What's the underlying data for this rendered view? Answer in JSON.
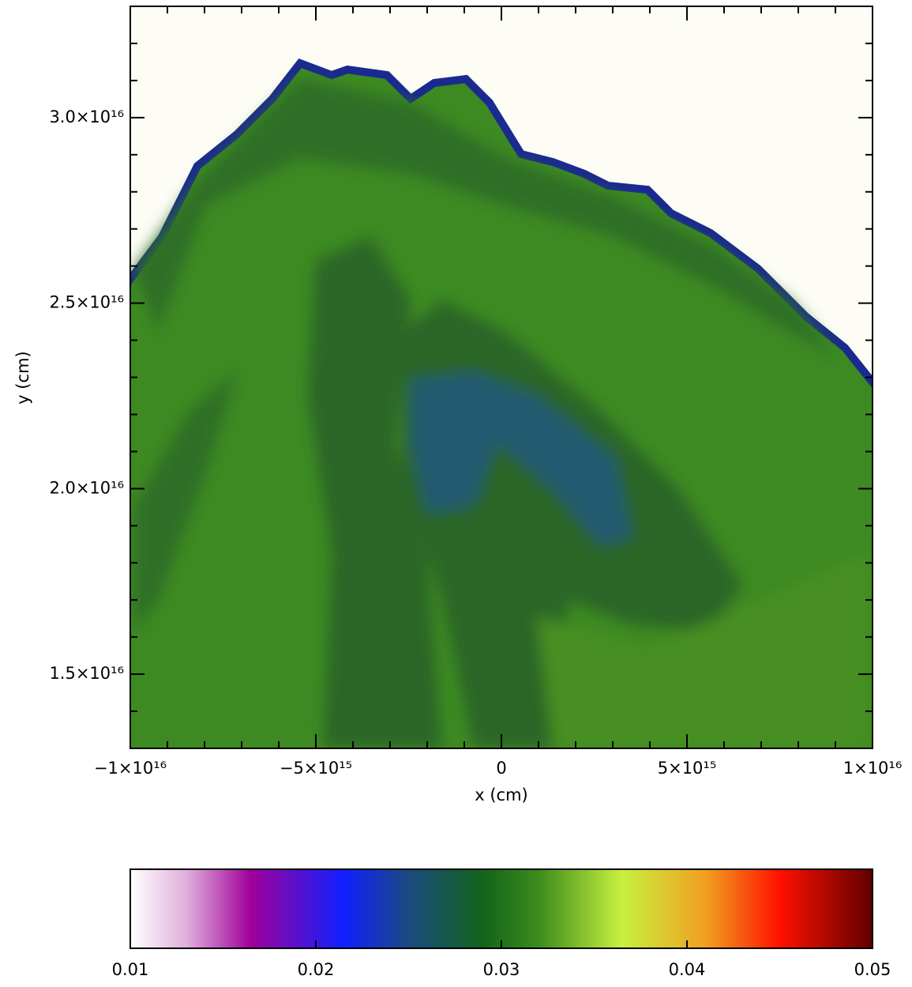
{
  "chart_data": {
    "type": "heatmap",
    "xlabel": "x (cm)",
    "ylabel": "y (cm)",
    "xlim": [
      -1e+16,
      1e+16
    ],
    "xticks": [
      {
        "value": -1e+16,
        "label": "−1×10¹⁶"
      },
      {
        "value": -5000000000000000.0,
        "label": "−5×10¹⁵"
      },
      0,
      {
        "value": 5000000000000000.0,
        "label": "5×10¹⁵"
      },
      {
        "value": 1e+16,
        "label": "1×10¹⁶"
      }
    ],
    "x_minor_ticks": [
      -9000000000000000.0,
      -8000000000000000.0,
      -7000000000000000.0,
      -6000000000000000.0,
      -4000000000000000.0,
      -3000000000000000.0,
      -2000000000000000.0,
      -1000000000000000.0,
      1000000000000000.0,
      2000000000000000.0,
      3000000000000000.0,
      4000000000000000.0,
      6000000000000000.0,
      7000000000000000.0,
      8000000000000000.0,
      9000000000000000.0
    ],
    "ylim": [
      1.3e+16,
      3.3e+16
    ],
    "yticks": [
      {
        "value": 1.5e+16,
        "label": "1.5×10¹⁶"
      },
      {
        "value": 2e+16,
        "label": "2.0×10¹⁶"
      },
      {
        "value": 2.5e+16,
        "label": "2.5×10¹⁶"
      },
      {
        "value": 3e+16,
        "label": "3.0×10¹⁶"
      }
    ],
    "y_minor_ticks": [
      1.4e+16,
      1.6e+16,
      1.7e+16,
      1.8e+16,
      1.9e+16,
      2.1e+16,
      2.2e+16,
      2.3e+16,
      2.4e+16,
      2.6e+16,
      2.7e+16,
      2.8e+16,
      2.9e+16,
      3.1e+16,
      3.2e+16
    ],
    "colorbar": {
      "lim": [
        0.01,
        0.05
      ],
      "ticks": [
        0.01,
        0.02,
        0.03,
        0.04,
        0.05
      ],
      "colorscale": [
        [
          0.01,
          "#ffffff"
        ],
        [
          0.013,
          "#e0b0dc"
        ],
        [
          0.0165,
          "#a0009a"
        ],
        [
          0.0215,
          "#1020ff"
        ],
        [
          0.025,
          "#1a4a80"
        ],
        [
          0.029,
          "#12641a"
        ],
        [
          0.032,
          "#3c8c1c"
        ],
        [
          0.0365,
          "#c8f040"
        ],
        [
          0.041,
          "#f0a020"
        ],
        [
          0.045,
          "#ff1000"
        ],
        [
          0.05,
          "#600000"
        ]
      ]
    }
  }
}
